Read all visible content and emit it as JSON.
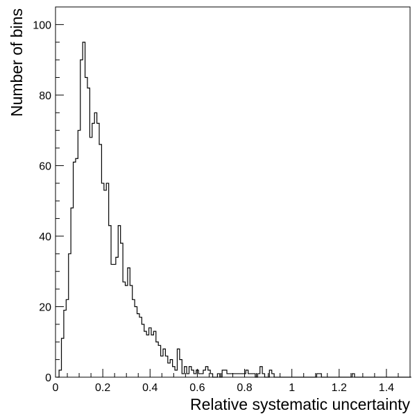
{
  "chart_data": {
    "type": "histogram",
    "xlabel": "Relative systematic uncertainty",
    "ylabel": "Number of bins",
    "xlim": [
      0,
      1.5
    ],
    "ylim": [
      0,
      105
    ],
    "bin_width": 0.01,
    "grid": false,
    "x_ticks": [
      0,
      0.2,
      0.4,
      0.6,
      0.8,
      1,
      1.2,
      1.4
    ],
    "x_tick_labels": [
      "0",
      "0.2",
      "0.4",
      "0.6",
      "0.8",
      "1",
      "1.2",
      "1.4"
    ],
    "y_ticks": [
      0,
      20,
      40,
      60,
      80,
      100
    ],
    "y_tick_labels": [
      "0",
      "20",
      "40",
      "60",
      "80",
      "100"
    ],
    "bins": [
      [
        0.01,
        0
      ],
      [
        0.02,
        2
      ],
      [
        0.03,
        11
      ],
      [
        0.04,
        19
      ],
      [
        0.05,
        22
      ],
      [
        0.06,
        35
      ],
      [
        0.07,
        48
      ],
      [
        0.08,
        61
      ],
      [
        0.09,
        62
      ],
      [
        0.1,
        70
      ],
      [
        0.11,
        90
      ],
      [
        0.12,
        95
      ],
      [
        0.13,
        85
      ],
      [
        0.14,
        82
      ],
      [
        0.15,
        68
      ],
      [
        0.16,
        72
      ],
      [
        0.17,
        75
      ],
      [
        0.18,
        72
      ],
      [
        0.19,
        66
      ],
      [
        0.2,
        55
      ],
      [
        0.21,
        53
      ],
      [
        0.22,
        55
      ],
      [
        0.23,
        43
      ],
      [
        0.24,
        32
      ],
      [
        0.25,
        32
      ],
      [
        0.26,
        34
      ],
      [
        0.27,
        43
      ],
      [
        0.28,
        38
      ],
      [
        0.29,
        27
      ],
      [
        0.3,
        26
      ],
      [
        0.31,
        31
      ],
      [
        0.32,
        26
      ],
      [
        0.33,
        22
      ],
      [
        0.34,
        20
      ],
      [
        0.35,
        18
      ],
      [
        0.36,
        17
      ],
      [
        0.37,
        15
      ],
      [
        0.38,
        13
      ],
      [
        0.39,
        12
      ],
      [
        0.4,
        14
      ],
      [
        0.41,
        12
      ],
      [
        0.42,
        13
      ],
      [
        0.43,
        10
      ],
      [
        0.44,
        9
      ],
      [
        0.45,
        6
      ],
      [
        0.46,
        8
      ],
      [
        0.47,
        6
      ],
      [
        0.48,
        4
      ],
      [
        0.49,
        5
      ],
      [
        0.5,
        3
      ],
      [
        0.51,
        2
      ],
      [
        0.52,
        8
      ],
      [
        0.53,
        5
      ],
      [
        0.54,
        1
      ],
      [
        0.55,
        3
      ],
      [
        0.56,
        1
      ],
      [
        0.57,
        3
      ],
      [
        0.58,
        2
      ],
      [
        0.59,
        1
      ],
      [
        0.6,
        2
      ],
      [
        0.61,
        1
      ],
      [
        0.62,
        1
      ],
      [
        0.63,
        2
      ],
      [
        0.64,
        3
      ],
      [
        0.65,
        2
      ],
      [
        0.66,
        1
      ],
      [
        0.67,
        0
      ],
      [
        0.68,
        0
      ],
      [
        0.69,
        1
      ],
      [
        0.7,
        0
      ],
      [
        0.71,
        2
      ],
      [
        0.72,
        2
      ],
      [
        0.73,
        1
      ],
      [
        0.74,
        1
      ],
      [
        0.75,
        1
      ],
      [
        0.76,
        1
      ],
      [
        0.77,
        1
      ],
      [
        0.78,
        1
      ],
      [
        0.79,
        1
      ],
      [
        0.8,
        1
      ],
      [
        0.81,
        2
      ],
      [
        0.82,
        1
      ],
      [
        0.83,
        1
      ],
      [
        0.84,
        1
      ],
      [
        0.85,
        0
      ],
      [
        0.86,
        1
      ],
      [
        0.87,
        3
      ],
      [
        0.88,
        1
      ],
      [
        0.89,
        0
      ],
      [
        0.9,
        0
      ],
      [
        0.91,
        2
      ],
      [
        0.92,
        1
      ],
      [
        0.93,
        0
      ],
      [
        0.94,
        0
      ],
      [
        0.95,
        0
      ],
      [
        0.96,
        0
      ],
      [
        0.97,
        0
      ],
      [
        0.98,
        0
      ],
      [
        0.99,
        0
      ],
      [
        1.0,
        0
      ],
      [
        1.01,
        0
      ],
      [
        1.02,
        0
      ],
      [
        1.03,
        0
      ],
      [
        1.04,
        0
      ],
      [
        1.05,
        0
      ],
      [
        1.06,
        0
      ],
      [
        1.07,
        0
      ],
      [
        1.08,
        0
      ],
      [
        1.09,
        0
      ],
      [
        1.1,
        0
      ],
      [
        1.11,
        1
      ],
      [
        1.12,
        1
      ],
      [
        1.13,
        0
      ],
      [
        1.14,
        0
      ],
      [
        1.15,
        0
      ],
      [
        1.16,
        0
      ],
      [
        1.17,
        0
      ],
      [
        1.18,
        0
      ],
      [
        1.19,
        0
      ],
      [
        1.2,
        0
      ],
      [
        1.21,
        0
      ],
      [
        1.22,
        0
      ],
      [
        1.23,
        0
      ],
      [
        1.24,
        0
      ],
      [
        1.25,
        0
      ],
      [
        1.26,
        1
      ],
      [
        1.27,
        0
      ],
      [
        1.28,
        0
      ],
      [
        1.29,
        0
      ],
      [
        1.3,
        0
      ],
      [
        1.31,
        0
      ],
      [
        1.32,
        0
      ],
      [
        1.33,
        0
      ],
      [
        1.34,
        0
      ],
      [
        1.35,
        0
      ],
      [
        1.36,
        0
      ],
      [
        1.37,
        0
      ],
      [
        1.38,
        0
      ],
      [
        1.39,
        0
      ],
      [
        1.4,
        0
      ],
      [
        1.41,
        0
      ],
      [
        1.42,
        0
      ],
      [
        1.43,
        0
      ],
      [
        1.44,
        0
      ],
      [
        1.45,
        0
      ],
      [
        1.46,
        0
      ],
      [
        1.47,
        0
      ],
      [
        1.48,
        0
      ],
      [
        1.49,
        0
      ],
      [
        1.5,
        0
      ]
    ],
    "line_color": "#000000",
    "background": "#ffffff"
  }
}
